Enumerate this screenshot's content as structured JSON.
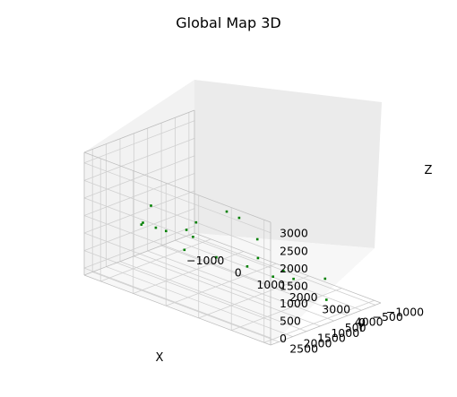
{
  "chart_data": {
    "type": "scatter",
    "title": "Global Map 3D",
    "xlabel": "X",
    "ylabel": "Y",
    "zlabel": "Z",
    "xlim": [
      -1500,
      4200
    ],
    "ylim": [
      -1200,
      2800
    ],
    "zlim": [
      -200,
      3300
    ],
    "x_ticks": [
      "−1000",
      "0",
      "1000",
      "2000",
      "3000",
      "4000"
    ],
    "y_ticks": [
      "−1000",
      "−500",
      "0",
      "500",
      "1000",
      "1500",
      "2000",
      "2500"
    ],
    "z_ticks": [
      "0",
      "500",
      "1000",
      "1500",
      "2000",
      "2500",
      "3000"
    ],
    "grid": true,
    "series": [
      {
        "color": "#008000",
        "points": [
          [
            -1100,
            1200,
            900
          ],
          [
            -800,
            1500,
            1150
          ],
          [
            -600,
            900,
            800
          ],
          [
            -900,
            -200,
            400
          ],
          [
            -300,
            1800,
            1900
          ],
          [
            100,
            2100,
            1500
          ],
          [
            300,
            1300,
            700
          ],
          [
            600,
            500,
            350
          ],
          [
            900,
            1700,
            1400
          ],
          [
            1200,
            -300,
            300
          ],
          [
            1500,
            2300,
            2200
          ],
          [
            1800,
            800,
            600
          ],
          [
            2100,
            1900,
            2600
          ],
          [
            2400,
            200,
            500
          ],
          [
            2700,
            1500,
            1900
          ],
          [
            3000,
            -600,
            250
          ],
          [
            3300,
            900,
            800
          ],
          [
            3600,
            2000,
            1300
          ],
          [
            3800,
            300,
            200
          ],
          [
            2900,
            2400,
            2850
          ]
        ]
      }
    ]
  }
}
